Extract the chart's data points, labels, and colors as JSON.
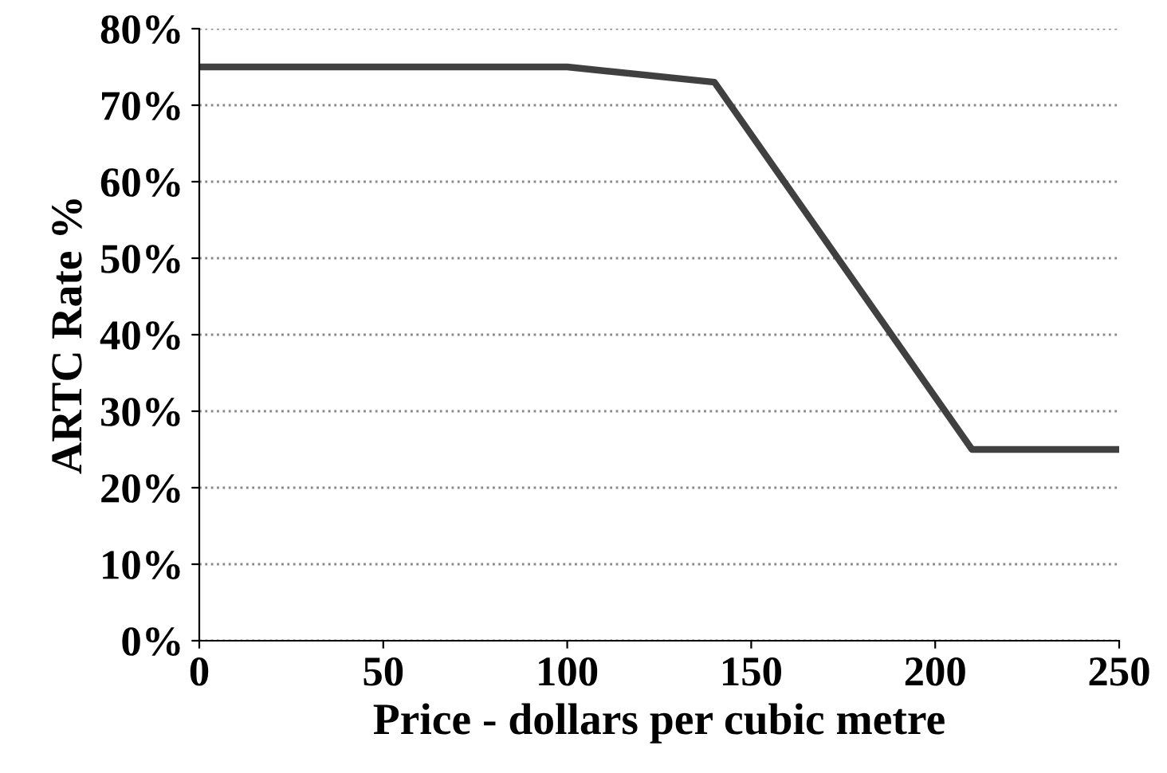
{
  "chart_data": {
    "type": "line",
    "xlabel": "Price - dollars per cubic metre",
    "ylabel": "ARTC Rate %",
    "x": [
      0,
      100,
      140,
      210,
      250
    ],
    "series": [
      {
        "color": "#404040",
        "values": [
          75,
          75,
          73,
          25,
          25
        ]
      }
    ],
    "xlim": [
      0,
      250
    ],
    "xticks": [
      0,
      50,
      100,
      150,
      200,
      250
    ],
    "ylim": [
      0,
      80
    ],
    "yticks": [
      {
        "value": 0,
        "label": "0%"
      },
      {
        "value": 10,
        "label": "10%"
      },
      {
        "value": 20,
        "label": "20%"
      },
      {
        "value": 30,
        "label": "30%"
      },
      {
        "value": 40,
        "label": "40%"
      },
      {
        "value": 50,
        "label": "50%"
      },
      {
        "value": 60,
        "label": "60%"
      },
      {
        "value": 70,
        "label": "70%"
      },
      {
        "value": 80,
        "label": "80%"
      }
    ],
    "grid": "y",
    "marker": "none",
    "line_style": "solid",
    "legend": false
  }
}
